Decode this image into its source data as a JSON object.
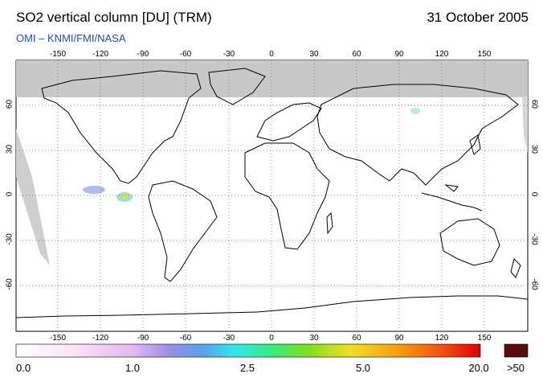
{
  "header": {
    "title": "SO2 vertical column [DU] (TRM)",
    "date": "31 October 2005",
    "subtitle": "OMI  –  KNMI/FMI/NASA"
  },
  "map": {
    "projection": "equirectangular",
    "lon_ticks": [
      "-150",
      "-120",
      "-90",
      "-60",
      "-30",
      "0",
      "30",
      "60",
      "90",
      "120",
      "150"
    ],
    "lat_ticks": [
      "60",
      "30",
      "0",
      "-30",
      "-60"
    ],
    "colors": {
      "land_outline": "#000000",
      "no_data": "#c8c8c8",
      "grid": "#555555",
      "background": "#ffffff"
    }
  },
  "colorbar": {
    "labels": [
      "0.0",
      "1.0",
      "2.5",
      "5.0",
      "20.0",
      ">50"
    ],
    "over_color": "#5a0a0a"
  }
}
